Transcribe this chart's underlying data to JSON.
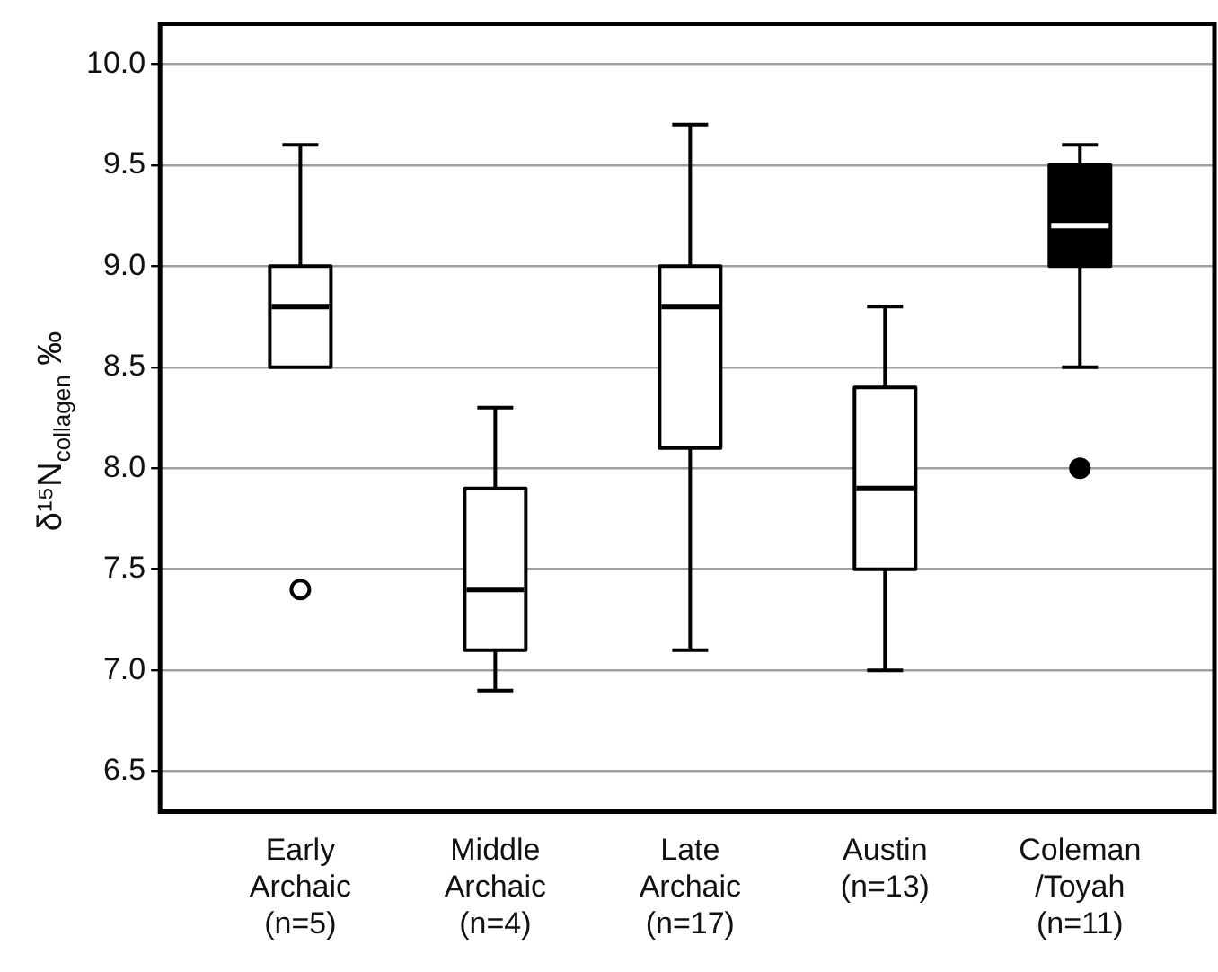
{
  "chart_data": {
    "type": "box",
    "ylabel": "δ¹⁵N$_{collagen}$ ‰",
    "categories": [
      "Early\nArchaic\n(n=5)",
      "Middle\nArchaic\n(n=4)",
      "Late\nArchaic\n(n=17)",
      "Austin\n(n=13)",
      "Coleman\n/Toyah\n(n=11)"
    ],
    "boxes": [
      {
        "low": 8.5,
        "q1": 8.5,
        "median": 8.8,
        "q3": 9.0,
        "high": 9.6,
        "outliers": [
          7.4
        ]
      },
      {
        "low": 6.9,
        "q1": 7.1,
        "median": 7.4,
        "q3": 7.9,
        "high": 8.3
      },
      {
        "low": 7.1,
        "q1": 8.1,
        "median": 8.8,
        "q3": 9.0,
        "high": 9.7
      },
      {
        "low": 7.0,
        "q1": 7.5,
        "median": 7.9,
        "q3": 8.4,
        "high": 8.8
      },
      {
        "low": 8.5,
        "q1": 9.0,
        "median": 9.2,
        "q3": 9.5,
        "high": 9.6,
        "outliers": [
          8.0
        ]
      }
    ],
    "colors": [
      "#ffffff",
      "#ffffff",
      "#ffffff",
      "#ffffff",
      "#000000"
    ],
    "ylim": [
      6.3,
      10.2
    ],
    "yticks": [
      {
        "value": 6.5,
        "label": "6.5"
      },
      {
        "value": 7,
        "label": "7.0"
      },
      {
        "value": 7.5,
        "label": "7.5"
      },
      {
        "value": 8,
        "label": "8.0"
      },
      {
        "value": 8.5,
        "label": "8.5"
      },
      {
        "value": 9,
        "label": "9.0"
      },
      {
        "value": 9.5,
        "label": "9.5"
      },
      {
        "value": 10,
        "label": "10.0"
      }
    ],
    "grid": "y"
  }
}
